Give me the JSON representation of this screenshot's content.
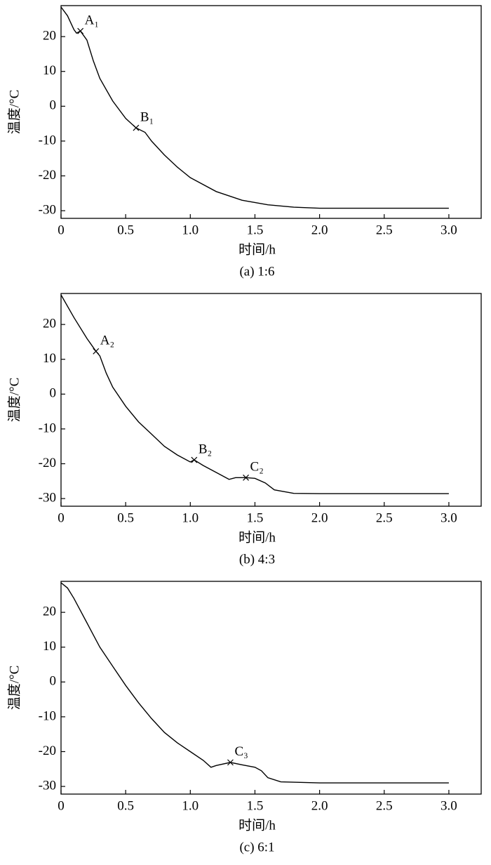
{
  "chart_data": [
    {
      "type": "line",
      "caption": "(a) 1:6",
      "xlabel": "时间/h",
      "ylabel": "温度/°C",
      "color": "#000000",
      "x": [
        0,
        0.05,
        0.1,
        0.12,
        0.15,
        0.2,
        0.25,
        0.3,
        0.4,
        0.5,
        0.58,
        0.65,
        0.7,
        0.8,
        0.9,
        1.0,
        1.2,
        1.4,
        1.6,
        1.8,
        2.0,
        2.5,
        3.0
      ],
      "values": [
        28.5,
        26,
        22,
        21,
        21.6,
        19,
        13,
        8,
        1.5,
        -3.5,
        -6.2,
        -7.5,
        -10,
        -14,
        -17.5,
        -20.5,
        -24.5,
        -27,
        -28.3,
        -29,
        -29.3,
        -29.3,
        -29.3
      ],
      "annotations": [
        {
          "text": "A₁",
          "x": 0.15,
          "y": 21.6
        },
        {
          "text": "B₁",
          "x": 0.58,
          "y": -6.2
        }
      ],
      "xlim": [
        0,
        3.25
      ],
      "ylim": [
        -32.2,
        28.9
      ],
      "xticks": [
        0,
        0.5,
        {
          "value": 1,
          "label": "1.0"
        },
        1.5,
        {
          "value": 2,
          "label": "2.0"
        },
        2.5,
        {
          "value": 3,
          "label": "3.0"
        }
      ],
      "yticks": [
        20,
        10,
        0,
        -10,
        -20,
        -30
      ]
    },
    {
      "type": "line",
      "caption": "(b) 4:3",
      "xlabel": "时间/h",
      "ylabel": "温度/°C",
      "color": "#000000",
      "x": [
        0,
        0.1,
        0.2,
        0.27,
        0.3,
        0.35,
        0.4,
        0.5,
        0.6,
        0.7,
        0.8,
        0.9,
        1.0,
        1.03,
        1.1,
        1.2,
        1.3,
        1.35,
        1.43,
        1.5,
        1.58,
        1.65,
        1.8,
        2.0,
        3.0
      ],
      "values": [
        28.5,
        22,
        16,
        12.3,
        11,
        6,
        2,
        -3.5,
        -8,
        -11.5,
        -15,
        -17.5,
        -19.5,
        -18.9,
        -20.5,
        -22.5,
        -24.5,
        -24,
        -24,
        -24.2,
        -25.5,
        -27.5,
        -28.5,
        -28.6,
        -28.6
      ],
      "annotations": [
        {
          "text": "A₂",
          "x": 0.27,
          "y": 12.3
        },
        {
          "text": "B₂",
          "x": 1.03,
          "y": -18.9
        },
        {
          "text": "C₂",
          "x": 1.43,
          "y": -24
        }
      ],
      "xlim": [
        0,
        3.25
      ],
      "ylim": [
        -32.2,
        28.9
      ],
      "xticks": [
        0,
        0.5,
        {
          "value": 1,
          "label": "1.0"
        },
        1.5,
        {
          "value": 2,
          "label": "2.0"
        },
        2.5,
        {
          "value": 3,
          "label": "3.0"
        }
      ],
      "yticks": [
        20,
        10,
        0,
        -10,
        -20,
        -30
      ]
    },
    {
      "type": "line",
      "caption": "(c) 6:1",
      "xlabel": "时间/h",
      "ylabel": "温度/°C",
      "color": "#000000",
      "x": [
        0,
        0.05,
        0.1,
        0.2,
        0.3,
        0.4,
        0.5,
        0.6,
        0.7,
        0.8,
        0.9,
        1.0,
        1.1,
        1.16,
        1.2,
        1.31,
        1.4,
        1.5,
        1.55,
        1.6,
        1.7,
        2.0,
        3.0
      ],
      "values": [
        28.5,
        27,
        24,
        17,
        10,
        4.5,
        -1,
        -6,
        -10.5,
        -14.5,
        -17.5,
        -20,
        -22.5,
        -24.5,
        -24,
        -23.1,
        -23.8,
        -24.5,
        -25.5,
        -27.5,
        -28.7,
        -29,
        -29
      ],
      "annotations": [
        {
          "text": "C₃",
          "x": 1.31,
          "y": -23.1
        }
      ],
      "xlim": [
        0,
        3.25
      ],
      "ylim": [
        -32.2,
        28.9
      ],
      "xticks": [
        0,
        0.5,
        {
          "value": 1,
          "label": "1.0"
        },
        1.5,
        {
          "value": 2,
          "label": "2.0"
        },
        2.5,
        {
          "value": 3,
          "label": "3.0"
        }
      ],
      "yticks": [
        20,
        10,
        0,
        -10,
        -20,
        -30
      ]
    }
  ]
}
